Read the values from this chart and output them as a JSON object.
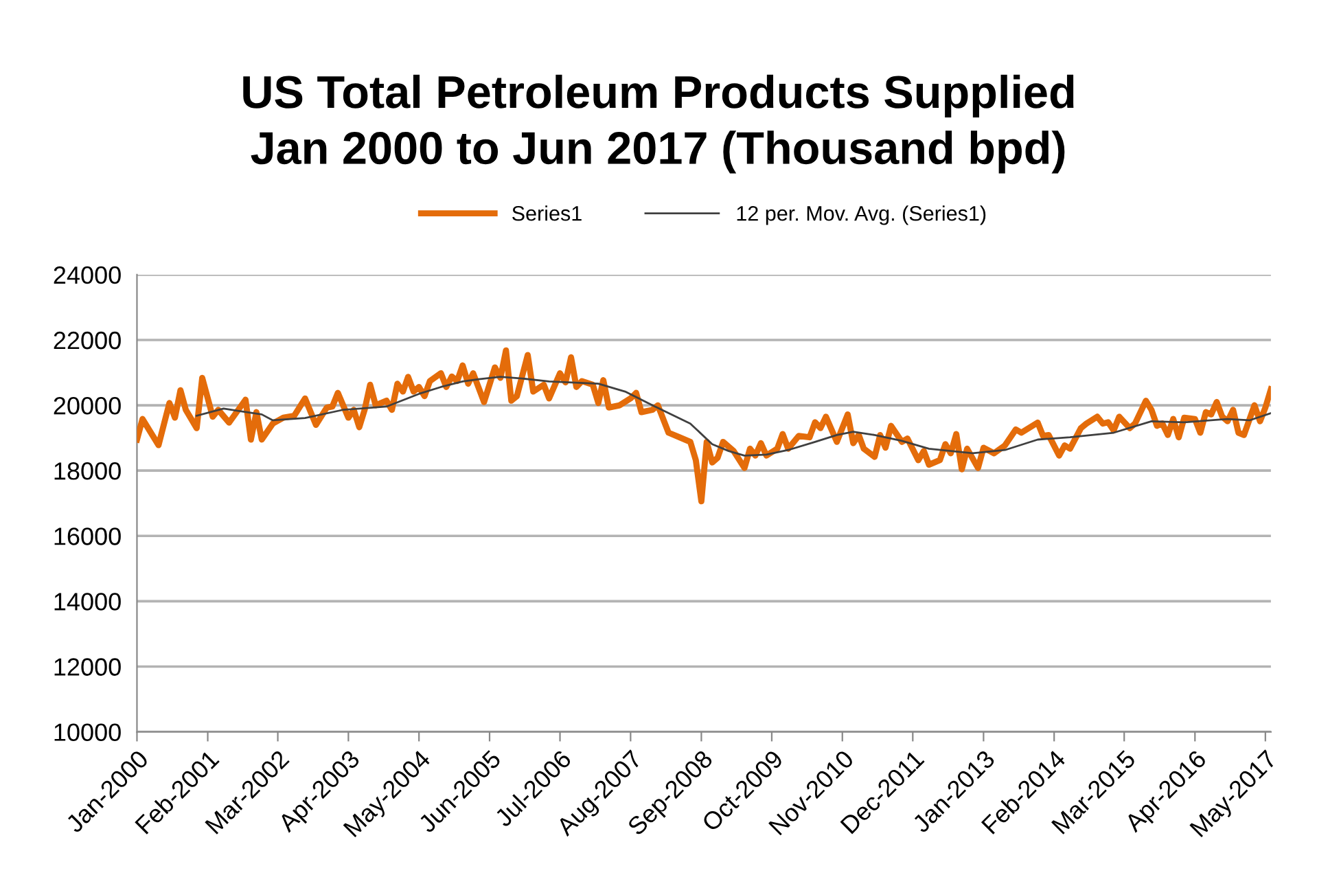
{
  "chart_data": {
    "type": "line",
    "title": "US Total Petroleum Products Supplied\nJan 2000 to Jun 2017 (Thousand bpd)",
    "series": [
      {
        "name": "Series1",
        "color": "#e46c0a",
        "line_style": "solid",
        "x": [
          "2000-01",
          "2000-02",
          "2000-05",
          "2000-07",
          "2000-08",
          "2000-09",
          "2000-10",
          "2000-12",
          "2001-01",
          "2001-03",
          "2001-04",
          "2001-06",
          "2001-09",
          "2001-10",
          "2001-11",
          "2001-12",
          "2002-02",
          "2002-04",
          "2002-06",
          "2002-08",
          "2002-10",
          "2002-12",
          "2003-01",
          "2003-02",
          "2003-04",
          "2003-05",
          "2003-06",
          "2003-07",
          "2003-08",
          "2003-09",
          "2003-11",
          "2003-12",
          "2004-01",
          "2004-02",
          "2004-03",
          "2004-04",
          "2004-05",
          "2004-06",
          "2004-07",
          "2004-09",
          "2004-10",
          "2004-11",
          "2004-12",
          "2005-01",
          "2005-02",
          "2005-03",
          "2005-05",
          "2005-07",
          "2005-08",
          "2005-09",
          "2005-10",
          "2005-11",
          "2006-01",
          "2006-02",
          "2006-04",
          "2006-05",
          "2006-07",
          "2006-08",
          "2006-09",
          "2006-10",
          "2006-11",
          "2007-01",
          "2007-02",
          "2007-03",
          "2007-04",
          "2007-06",
          "2007-08",
          "2007-09",
          "2007-10",
          "2007-12",
          "2008-01",
          "2008-03",
          "2008-05",
          "2008-07",
          "2008-08",
          "2008-09",
          "2008-10",
          "2008-11",
          "2008-12",
          "2009-01",
          "2009-03",
          "2009-05",
          "2009-06",
          "2009-07",
          "2009-08",
          "2009-09",
          "2009-11",
          "2009-12",
          "2010-01",
          "2010-03",
          "2010-05",
          "2010-06",
          "2010-07",
          "2010-08",
          "2010-10",
          "2010-12",
          "2011-01",
          "2011-02",
          "2011-03",
          "2011-05",
          "2011-06",
          "2011-07",
          "2011-08",
          "2011-10",
          "2011-11",
          "2012-01",
          "2012-02",
          "2012-03",
          "2012-05",
          "2012-06",
          "2012-07",
          "2012-08",
          "2012-09",
          "2012-10",
          "2012-12",
          "2013-01",
          "2013-03",
          "2013-05",
          "2013-07",
          "2013-08",
          "2013-11",
          "2013-12",
          "2014-01",
          "2014-03",
          "2014-04",
          "2014-05",
          "2014-07",
          "2014-08",
          "2014-10",
          "2014-11",
          "2014-12",
          "2015-01",
          "2015-02",
          "2015-04",
          "2015-05",
          "2015-07",
          "2015-08",
          "2015-09",
          "2015-10",
          "2015-11",
          "2015-12",
          "2016-01",
          "2016-02",
          "2016-04",
          "2016-05",
          "2016-06",
          "2016-07",
          "2016-08",
          "2016-09",
          "2016-10",
          "2016-11",
          "2016-12",
          "2017-01",
          "2017-03",
          "2017-04",
          "2017-05",
          "2017-06"
        ],
        "values": [
          18950,
          19580,
          18780,
          20070,
          19620,
          20460,
          19860,
          19300,
          20840,
          19650,
          19860,
          19470,
          20170,
          18950,
          19790,
          18950,
          19440,
          19620,
          19680,
          20210,
          19400,
          19930,
          19960,
          20380,
          19620,
          19860,
          19330,
          19860,
          20630,
          20000,
          20140,
          19860,
          20660,
          20420,
          20870,
          20420,
          20560,
          20280,
          20740,
          20980,
          20560,
          20880,
          20740,
          21220,
          20660,
          20980,
          20100,
          21160,
          20840,
          21680,
          20140,
          20280,
          21540,
          20420,
          20630,
          20210,
          20980,
          20700,
          21470,
          20560,
          20740,
          20630,
          20070,
          20770,
          19930,
          20000,
          20210,
          20380,
          19790,
          19860,
          20000,
          19160,
          19020,
          18880,
          18320,
          17060,
          18880,
          18250,
          18390,
          18880,
          18600,
          18080,
          18670,
          18460,
          18840,
          18460,
          18670,
          19120,
          18670,
          19060,
          19020,
          19480,
          19300,
          19650,
          18880,
          19720,
          18840,
          19090,
          18670,
          18420,
          19090,
          18700,
          19370,
          18880,
          18980,
          18320,
          18600,
          18180,
          18320,
          18810,
          18530,
          19120,
          18040,
          18670,
          18080,
          18700,
          18530,
          18770,
          19260,
          19160,
          19470,
          19060,
          19090,
          18460,
          18770,
          18670,
          19300,
          19440,
          19650,
          19440,
          19480,
          19230,
          19650,
          19300,
          19440,
          20140,
          19860,
          19370,
          19440,
          19090,
          19580,
          19020,
          19620,
          19580,
          19160,
          19790,
          19720,
          20100,
          19650,
          19510,
          19860,
          19160,
          19090,
          20000,
          19510,
          19930,
          20490
        ]
      },
      {
        "name": "12 per. Mov. Avg. (Series1)",
        "color": "#404040",
        "line_style": "solid",
        "x": [
          "2000-12",
          "2001-05",
          "2001-08",
          "2001-12",
          "2002-02",
          "2002-08",
          "2003-03",
          "2003-11",
          "2004-05",
          "2004-09",
          "2005-01",
          "2005-04",
          "2005-08",
          "2005-12",
          "2006-05",
          "2007-02",
          "2007-07",
          "2007-12",
          "2008-07",
          "2008-11",
          "2009-02",
          "2009-05",
          "2009-09",
          "2010-01",
          "2010-06",
          "2010-10",
          "2011-01",
          "2011-05",
          "2011-10",
          "2012-03",
          "2012-11",
          "2013-05",
          "2013-11",
          "2014-05",
          "2015-01",
          "2015-08",
          "2016-02",
          "2016-10",
          "2017-02",
          "2017-06"
        ],
        "values": [
          19680,
          19900,
          19820,
          19720,
          19540,
          19610,
          19860,
          19960,
          20350,
          20560,
          20730,
          20800,
          20870,
          20820,
          20730,
          20660,
          20420,
          20000,
          19440,
          18810,
          18600,
          18460,
          18490,
          18630,
          18880,
          19090,
          19190,
          19090,
          18910,
          18670,
          18530,
          18630,
          18950,
          19020,
          19160,
          19510,
          19480,
          19580,
          19540,
          19760
        ]
      }
    ],
    "xlim": [
      "2000-01",
      "2017-06"
    ],
    "xticks": [
      {
        "value": "2000-01",
        "label": "Jan-2000"
      },
      {
        "value": "2001-02",
        "label": "Feb-2001"
      },
      {
        "value": "2002-03",
        "label": "Mar-2002"
      },
      {
        "value": "2003-04",
        "label": "Apr-2003"
      },
      {
        "value": "2004-05",
        "label": "May-2004"
      },
      {
        "value": "2005-06",
        "label": "Jun-2005"
      },
      {
        "value": "2006-07",
        "label": "Jul-2006"
      },
      {
        "value": "2007-08",
        "label": "Aug-2007"
      },
      {
        "value": "2008-09",
        "label": "Sep-2008"
      },
      {
        "value": "2009-10",
        "label": "Oct-2009"
      },
      {
        "value": "2010-11",
        "label": "Nov-2010"
      },
      {
        "value": "2011-12",
        "label": "Dec-2011"
      },
      {
        "value": "2013-01",
        "label": "Jan-2013"
      },
      {
        "value": "2014-02",
        "label": "Feb-2014"
      },
      {
        "value": "2015-03",
        "label": "Mar-2015"
      },
      {
        "value": "2016-04",
        "label": "Apr-2016"
      },
      {
        "value": "2017-05",
        "label": "May-2017"
      }
    ],
    "ylim": [
      10000,
      24000
    ],
    "yticks": [
      10000,
      12000,
      14000,
      16000,
      18000,
      20000,
      22000,
      24000
    ],
    "grid": "y",
    "legend": "top",
    "marker": "none"
  }
}
